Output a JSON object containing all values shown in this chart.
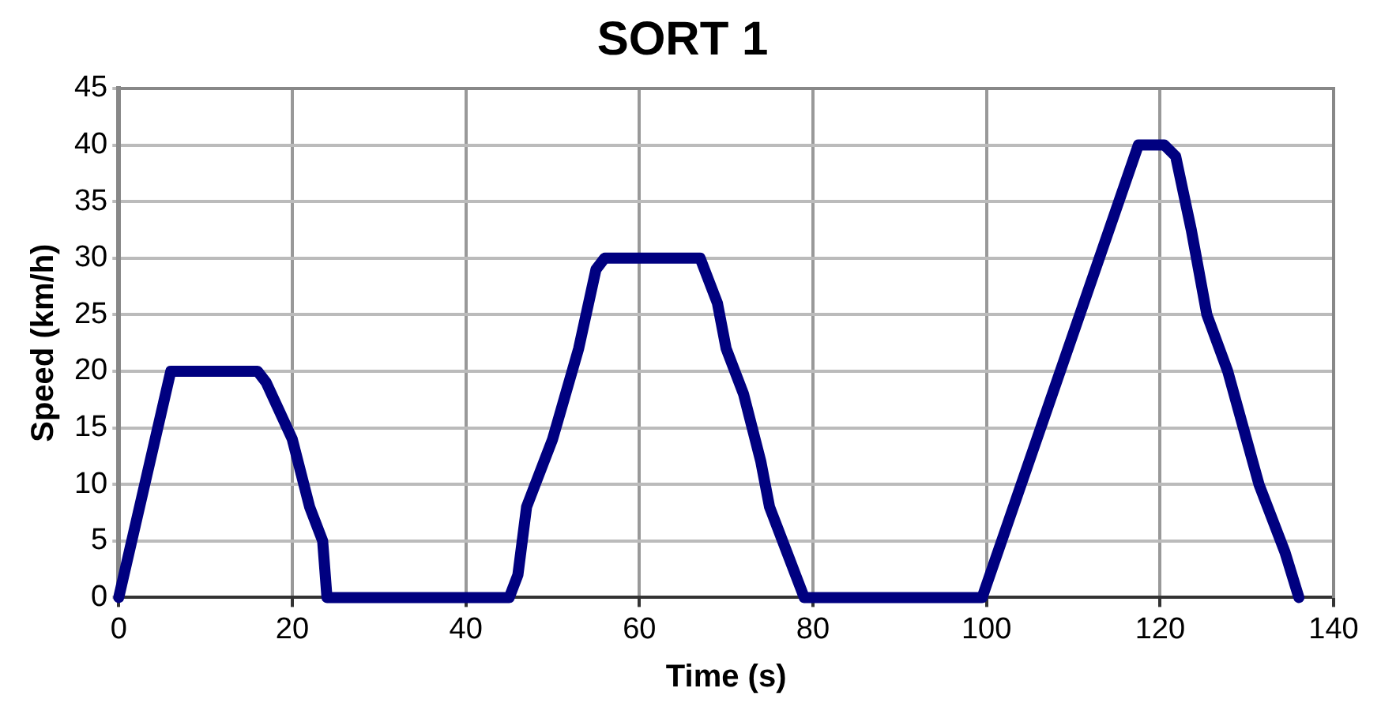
{
  "chart_data": {
    "type": "line",
    "title": "SORT 1",
    "xlabel": "Time (s)",
    "ylabel": "Speed (km/h)",
    "xlim": [
      0,
      140
    ],
    "xticks": [
      0,
      20,
      40,
      60,
      80,
      100,
      120,
      140
    ],
    "ylim": [
      0,
      45
    ],
    "yticks": [
      0,
      5,
      10,
      15,
      20,
      25,
      30,
      35,
      40,
      45
    ],
    "grid": true,
    "marker": "none",
    "line_style": "solid",
    "series": [
      {
        "color": "#000080",
        "x": [
          0,
          6,
          16,
          17,
          20,
          22,
          23.5,
          24,
          45,
          46,
          47,
          49,
          50,
          53,
          55,
          56,
          67,
          69,
          70,
          72,
          74,
          75,
          77,
          79,
          99.5,
          117.5,
          120.5,
          121.8,
          123.6,
          125.4,
          127.8,
          131.4,
          134.4,
          136
        ],
        "values": [
          0,
          20,
          20,
          19,
          14,
          8,
          5,
          0,
          0,
          2,
          8,
          12,
          14,
          22,
          29,
          30,
          30,
          26,
          22,
          18,
          12,
          8,
          4,
          0,
          0,
          40,
          40,
          39,
          32.5,
          25,
          20,
          10,
          4,
          0
        ]
      }
    ]
  }
}
